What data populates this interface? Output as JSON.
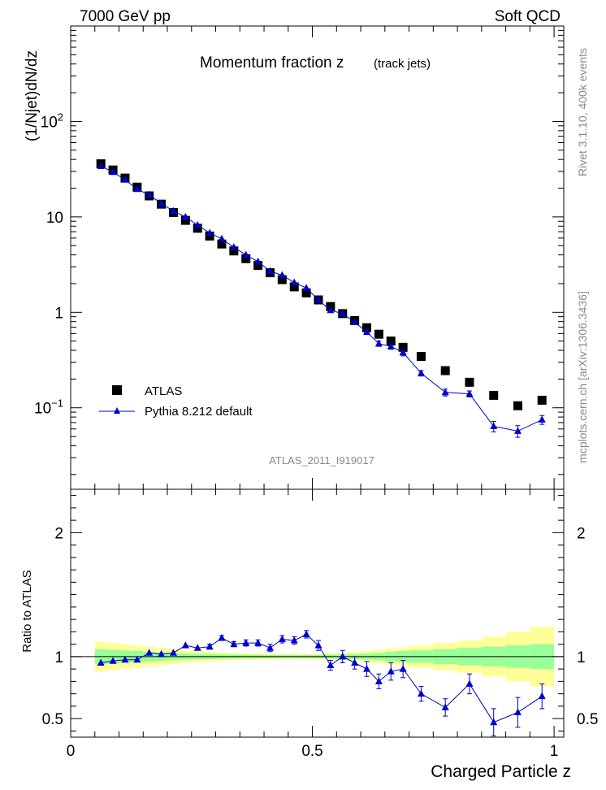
{
  "header": {
    "left": "7000 GeV pp",
    "right": "Soft QCD"
  },
  "side": {
    "rivet": "Rivet 3.1.10,  400k events",
    "mcplots": "mcplots.cern.ch [arXiv:1306.3436]"
  },
  "watermark": "ATLAS_2011_I919017",
  "chart_data": [
    {
      "type": "scatter",
      "title": "Momentum fraction z",
      "subtitle": "(track jets)",
      "ylabel": "(1/Njet)dN/dz",
      "yscale": "log",
      "ylim": [
        0.014,
        1000
      ],
      "yticks": [
        {
          "v": 0.1,
          "base": "10",
          "exp": "−1"
        },
        {
          "v": 1,
          "base": "1",
          "exp": ""
        },
        {
          "v": 10,
          "base": "10",
          "exp": ""
        },
        {
          "v": 100,
          "base": "10",
          "exp": "2"
        }
      ],
      "x": [
        0.0625,
        0.0875,
        0.1125,
        0.1375,
        0.1625,
        0.1875,
        0.2125,
        0.2375,
        0.2625,
        0.2875,
        0.3125,
        0.3375,
        0.3625,
        0.3875,
        0.4125,
        0.4375,
        0.4625,
        0.4875,
        0.5125,
        0.5375,
        0.5625,
        0.5875,
        0.6125,
        0.6375,
        0.6625,
        0.6875,
        0.725,
        0.775,
        0.825,
        0.875,
        0.925,
        0.975
      ],
      "series": [
        {
          "name": "ATLAS",
          "values": [
            36,
            31,
            25.5,
            20.5,
            16.6,
            13.6,
            11.1,
            9.2,
            7.6,
            6.3,
            5.2,
            4.4,
            3.65,
            3.1,
            2.6,
            2.2,
            1.85,
            1.6,
            1.35,
            1.15,
            0.97,
            0.82,
            0.69,
            0.59,
            0.5,
            0.43,
            0.345,
            0.245,
            0.185,
            0.135,
            0.105,
            0.12
          ]
        },
        {
          "name": "Pythia 8.212 default",
          "values": [
            34,
            29.5,
            24.5,
            19.5,
            17,
            13.8,
            11.5,
            10,
            8.2,
            6.8,
            5.9,
            4.8,
            4.0,
            3.4,
            2.7,
            2.45,
            2.05,
            1.8,
            1.35,
            1.05,
            0.97,
            0.79,
            0.62,
            0.47,
            0.44,
            0.38,
            0.23,
            0.145,
            0.14,
            0.064,
            0.057,
            0.075
          ],
          "errors": [
            0,
            0,
            0,
            0,
            0,
            0,
            0,
            0,
            0,
            0,
            0,
            0,
            0,
            0,
            0,
            0,
            0,
            0,
            0,
            0,
            0,
            0,
            0.03,
            0.03,
            0.03,
            0.03,
            0.015,
            0.012,
            0.01,
            0.008,
            0.008,
            0.008
          ]
        }
      ],
      "legend": [
        "ATLAS",
        "Pythia 8.212 default"
      ]
    },
    {
      "type": "line",
      "ylabel": "Ratio to ATLAS",
      "xlabel": "Charged Particle z",
      "xlim": [
        0,
        1.02
      ],
      "ylim": [
        0.35,
        2.35
      ],
      "yticks": [
        0.5,
        1,
        2
      ],
      "xticks": [
        0,
        0.5,
        1
      ],
      "x_edges": [
        0.05,
        0.075,
        0.1,
        0.125,
        0.15,
        0.175,
        0.2,
        0.225,
        0.25,
        0.275,
        0.3,
        0.325,
        0.35,
        0.375,
        0.4,
        0.425,
        0.45,
        0.475,
        0.5,
        0.525,
        0.55,
        0.575,
        0.6,
        0.625,
        0.65,
        0.675,
        0.7,
        0.75,
        0.8,
        0.85,
        0.9,
        0.95,
        1.0
      ],
      "band_stat": [
        0.06,
        0.055,
        0.05,
        0.045,
        0.04,
        0.035,
        0.03,
        0.025,
        0.022,
        0.02,
        0.018,
        0.016,
        0.015,
        0.014,
        0.013,
        0.012,
        0.012,
        0.012,
        0.013,
        0.015,
        0.017,
        0.02,
        0.025,
        0.03,
        0.04,
        0.045,
        0.05,
        0.06,
        0.07,
        0.08,
        0.09,
        0.1
      ],
      "band_total": [
        0.12,
        0.11,
        0.1,
        0.09,
        0.08,
        0.07,
        0.06,
        0.05,
        0.045,
        0.04,
        0.035,
        0.03,
        0.028,
        0.026,
        0.024,
        0.022,
        0.022,
        0.022,
        0.024,
        0.028,
        0.032,
        0.037,
        0.045,
        0.055,
        0.065,
        0.075,
        0.09,
        0.11,
        0.13,
        0.16,
        0.2,
        0.24
      ],
      "ratio": [
        0.95,
        0.965,
        0.975,
        0.975,
        1.03,
        1.02,
        1.03,
        1.09,
        1.07,
        1.08,
        1.15,
        1.1,
        1.11,
        1.11,
        1.07,
        1.14,
        1.13,
        1.18,
        1.09,
        0.93,
        1.0,
        0.95,
        0.9,
        0.8,
        0.88,
        0.9,
        0.7,
        0.59,
        0.78,
        0.47,
        0.55,
        0.68
      ],
      "ratio_err": [
        0,
        0,
        0,
        0,
        0,
        0,
        0,
        0,
        0,
        0.02,
        0.02,
        0.02,
        0.025,
        0.025,
        0.03,
        0.03,
        0.03,
        0.03,
        0.04,
        0.04,
        0.05,
        0.05,
        0.06,
        0.06,
        0.07,
        0.07,
        0.06,
        0.07,
        0.08,
        0.11,
        0.12,
        0.1
      ]
    }
  ]
}
